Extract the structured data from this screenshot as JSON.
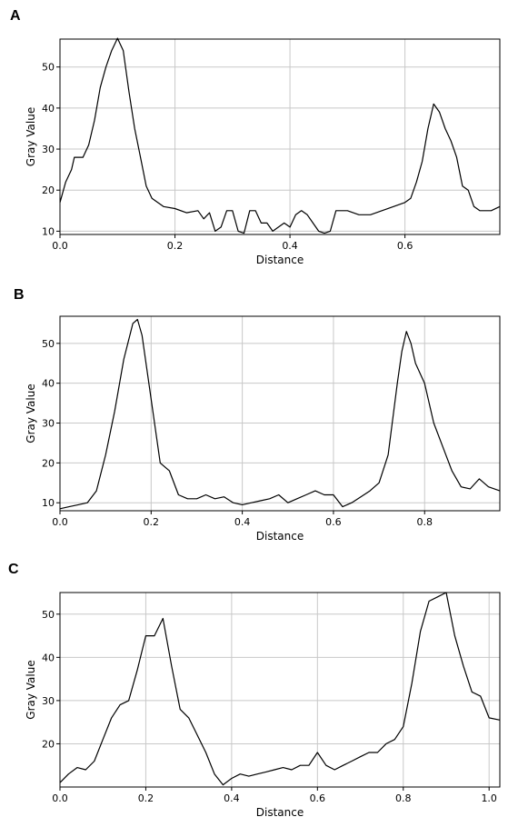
{
  "panels": [
    {
      "letter": "A"
    },
    {
      "letter": "B"
    },
    {
      "letter": "C"
    }
  ],
  "chart_data": [
    {
      "type": "line",
      "panel": "A",
      "xlabel": "Distance",
      "ylabel": "Gray Value",
      "xlim": [
        0.0,
        0.765
      ],
      "ylim": [
        9.2,
        56.8
      ],
      "xticks": [
        "0.0",
        "0.2",
        "0.4",
        "0.6"
      ],
      "xtick_values": [
        0.0,
        0.2,
        0.4,
        0.6
      ],
      "yticks": [
        "10",
        "20",
        "30",
        "40",
        "50"
      ],
      "ytick_values": [
        10,
        20,
        30,
        40,
        50
      ],
      "grid": true,
      "line_color": "#000000",
      "grid_color": "#c8c8c8",
      "x": [
        0.0,
        0.01,
        0.02,
        0.025,
        0.04,
        0.05,
        0.06,
        0.07,
        0.08,
        0.09,
        0.1,
        0.11,
        0.12,
        0.13,
        0.14,
        0.15,
        0.16,
        0.18,
        0.2,
        0.22,
        0.24,
        0.25,
        0.26,
        0.27,
        0.28,
        0.29,
        0.3,
        0.31,
        0.32,
        0.33,
        0.34,
        0.35,
        0.36,
        0.37,
        0.38,
        0.39,
        0.4,
        0.41,
        0.42,
        0.43,
        0.44,
        0.45,
        0.46,
        0.47,
        0.48,
        0.5,
        0.52,
        0.54,
        0.56,
        0.58,
        0.6,
        0.61,
        0.62,
        0.63,
        0.64,
        0.65,
        0.66,
        0.67,
        0.68,
        0.69,
        0.7,
        0.71,
        0.72,
        0.73,
        0.74,
        0.75,
        0.765
      ],
      "y": [
        17,
        22,
        25,
        28,
        28,
        31,
        37,
        45,
        50,
        54,
        57,
        54,
        44,
        35,
        28,
        21,
        18,
        16,
        15.5,
        14.5,
        15,
        13,
        14.5,
        10,
        11,
        15,
        15,
        10,
        9.5,
        15,
        15,
        12,
        12,
        10,
        11,
        12,
        11,
        14,
        15,
        14,
        12,
        10,
        9.5,
        10,
        15,
        15,
        14,
        14,
        15,
        16,
        17,
        18,
        22,
        27,
        35,
        41,
        39,
        35,
        32,
        28,
        21,
        20,
        16,
        15,
        15,
        15,
        16
      ]
    },
    {
      "type": "line",
      "panel": "B",
      "xlabel": "Distance",
      "ylabel": "Gray Value",
      "xlim": [
        0.0,
        0.965
      ],
      "ylim": [
        8.0,
        56.8
      ],
      "xticks": [
        "0.0",
        "0.2",
        "0.4",
        "0.6",
        "0.8"
      ],
      "xtick_values": [
        0.0,
        0.2,
        0.4,
        0.6,
        0.8
      ],
      "yticks": [
        "10",
        "20",
        "30",
        "40",
        "50"
      ],
      "ytick_values": [
        10,
        20,
        30,
        40,
        50
      ],
      "grid": true,
      "line_color": "#000000",
      "grid_color": "#c8c8c8",
      "x": [
        0.0,
        0.02,
        0.04,
        0.06,
        0.08,
        0.1,
        0.12,
        0.14,
        0.16,
        0.17,
        0.18,
        0.2,
        0.22,
        0.24,
        0.26,
        0.28,
        0.3,
        0.32,
        0.34,
        0.36,
        0.38,
        0.4,
        0.42,
        0.44,
        0.46,
        0.48,
        0.5,
        0.52,
        0.54,
        0.56,
        0.58,
        0.6,
        0.62,
        0.64,
        0.66,
        0.68,
        0.7,
        0.72,
        0.74,
        0.75,
        0.76,
        0.77,
        0.78,
        0.8,
        0.82,
        0.84,
        0.86,
        0.88,
        0.9,
        0.92,
        0.94,
        0.965
      ],
      "y": [
        8.5,
        9,
        9.5,
        10,
        13,
        22,
        33,
        46,
        55,
        56,
        52,
        36,
        20,
        18,
        12,
        11,
        11,
        12,
        11,
        11.5,
        10,
        9.5,
        10,
        10.5,
        11,
        12,
        10,
        11,
        12,
        13,
        12,
        12,
        9,
        10,
        11.5,
        13,
        15,
        22,
        40,
        48,
        53,
        50,
        45,
        40,
        30,
        24,
        18,
        14,
        13.5,
        16,
        14,
        13
      ]
    },
    {
      "type": "line",
      "panel": "C",
      "xlabel": "Distance",
      "ylabel": "Gray Value",
      "xlim": [
        0.0,
        1.025
      ],
      "ylim": [
        10.0,
        55.0
      ],
      "xticks": [
        "0.0",
        "0.2",
        "0.4",
        "0.6",
        "0.8",
        "1.0"
      ],
      "xtick_values": [
        0.0,
        0.2,
        0.4,
        0.6,
        0.8,
        1.0
      ],
      "yticks": [
        "20",
        "30",
        "40",
        "50"
      ],
      "ytick_values": [
        20,
        30,
        40,
        50
      ],
      "grid": true,
      "line_color": "#000000",
      "grid_color": "#c8c8c8",
      "x": [
        0.0,
        0.02,
        0.04,
        0.06,
        0.08,
        0.1,
        0.12,
        0.14,
        0.16,
        0.18,
        0.2,
        0.22,
        0.24,
        0.26,
        0.28,
        0.3,
        0.32,
        0.34,
        0.36,
        0.38,
        0.4,
        0.42,
        0.44,
        0.46,
        0.48,
        0.5,
        0.52,
        0.54,
        0.56,
        0.58,
        0.6,
        0.62,
        0.64,
        0.66,
        0.68,
        0.7,
        0.72,
        0.74,
        0.76,
        0.78,
        0.8,
        0.82,
        0.84,
        0.86,
        0.88,
        0.9,
        0.92,
        0.94,
        0.96,
        0.98,
        1.0,
        1.025
      ],
      "y": [
        11,
        13,
        14.5,
        14,
        16,
        21,
        26,
        29,
        30,
        37,
        45,
        45,
        49,
        38,
        28,
        26,
        22,
        18,
        13,
        10.5,
        12,
        13,
        12.5,
        13,
        13.5,
        14,
        14.5,
        14,
        15,
        15,
        18,
        15,
        14,
        15,
        16,
        17,
        18,
        18,
        20,
        21,
        24,
        34,
        46,
        53,
        54,
        55,
        45,
        38,
        32,
        31,
        26,
        25.5
      ]
    }
  ]
}
